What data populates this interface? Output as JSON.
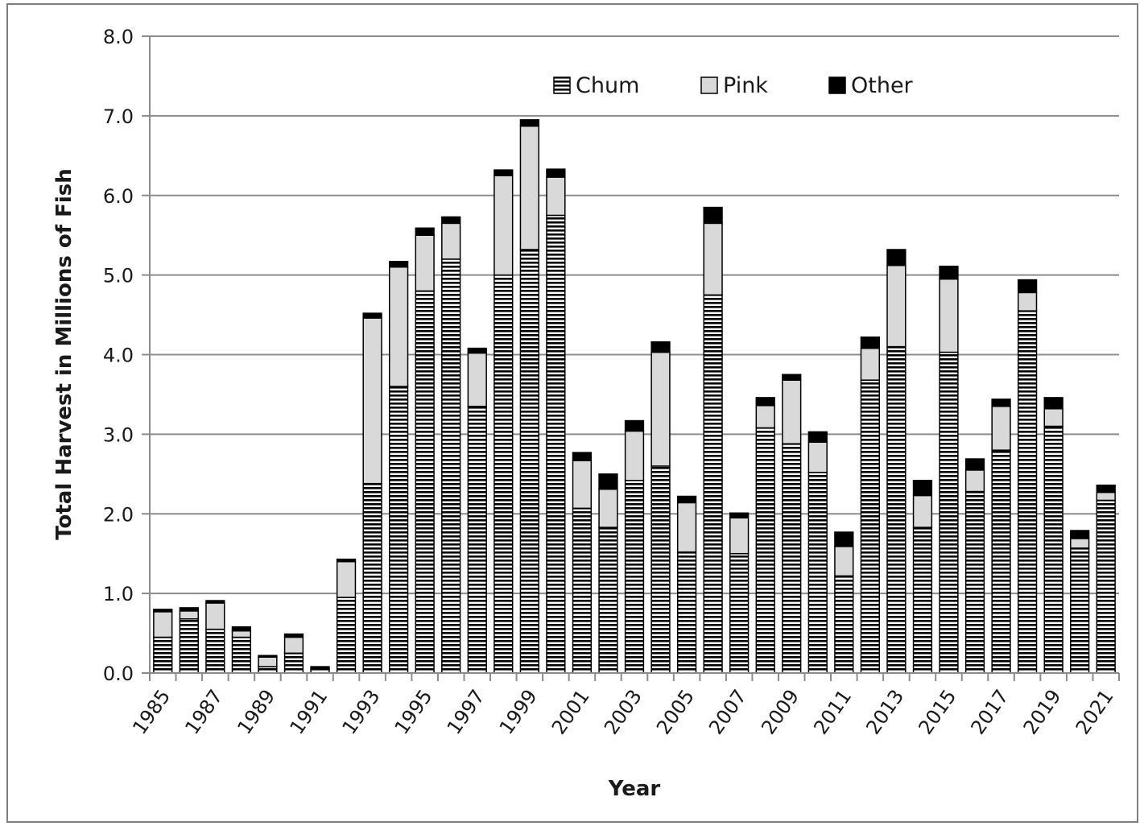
{
  "chart_data": {
    "type": "bar",
    "stacked": true,
    "xlabel": "Year",
    "ylabel": "Total Harvest in Millions of Fish",
    "ylim": [
      0,
      8
    ],
    "yticks": [
      "0.0",
      "1.0",
      "2.0",
      "3.0",
      "4.0",
      "5.0",
      "6.0",
      "7.0",
      "8.0"
    ],
    "grid": true,
    "legend_position": "top-right",
    "categories": [
      "1985",
      "1986",
      "1987",
      "1988",
      "1989",
      "1990",
      "1991",
      "1992",
      "1993",
      "1994",
      "1995",
      "1996",
      "1997",
      "1998",
      "1999",
      "2000",
      "2001",
      "2002",
      "2003",
      "2004",
      "2005",
      "2006",
      "2007",
      "2008",
      "2009",
      "2010",
      "2011",
      "2012",
      "2013",
      "2014",
      "2015",
      "2016",
      "2017",
      "2018",
      "2019",
      "2020",
      "2021"
    ],
    "xtick_labels": [
      "1985",
      "1987",
      "1989",
      "1991",
      "1993",
      "1995",
      "1997",
      "1999",
      "2001",
      "2003",
      "2005",
      "2007",
      "2009",
      "2011",
      "2013",
      "2015",
      "2017",
      "2019",
      "2021"
    ],
    "series": [
      {
        "name": "Chum",
        "pattern": "horizontal-stripes",
        "color": "#000000",
        "values": [
          0.45,
          0.68,
          0.55,
          0.45,
          0.08,
          0.25,
          0.05,
          0.95,
          2.38,
          3.6,
          4.8,
          5.2,
          3.35,
          5.0,
          5.32,
          5.75,
          2.07,
          1.83,
          2.42,
          2.6,
          1.52,
          4.75,
          1.5,
          3.08,
          2.88,
          2.52,
          1.22,
          3.68,
          4.1,
          1.83,
          4.03,
          2.28,
          2.8,
          4.55,
          3.1,
          1.57,
          2.17
        ]
      },
      {
        "name": "Pink",
        "pattern": "solid",
        "color": "#d9d9d9",
        "values": [
          0.32,
          0.1,
          0.33,
          0.08,
          0.12,
          0.2,
          0.01,
          0.45,
          2.08,
          1.5,
          0.7,
          0.45,
          0.67,
          1.25,
          1.55,
          0.48,
          0.6,
          0.48,
          0.62,
          1.43,
          0.62,
          0.9,
          0.45,
          0.28,
          0.8,
          0.38,
          0.37,
          0.4,
          1.02,
          0.4,
          0.92,
          0.27,
          0.55,
          0.23,
          0.22,
          0.12,
          0.1
        ]
      },
      {
        "name": "Other",
        "pattern": "solid",
        "color": "#000000",
        "values": [
          0.03,
          0.04,
          0.03,
          0.05,
          0.02,
          0.04,
          0.02,
          0.03,
          0.06,
          0.07,
          0.09,
          0.08,
          0.06,
          0.07,
          0.08,
          0.1,
          0.1,
          0.19,
          0.13,
          0.13,
          0.08,
          0.2,
          0.06,
          0.1,
          0.07,
          0.13,
          0.18,
          0.14,
          0.2,
          0.19,
          0.16,
          0.14,
          0.09,
          0.16,
          0.14,
          0.1,
          0.09
        ]
      }
    ]
  },
  "colors": {
    "gridline": "#8c8c8c",
    "axis": "#8c8c8c",
    "bar_outline": "#000000",
    "pink_fill": "#d9d9d9",
    "stripe": "#000000"
  }
}
